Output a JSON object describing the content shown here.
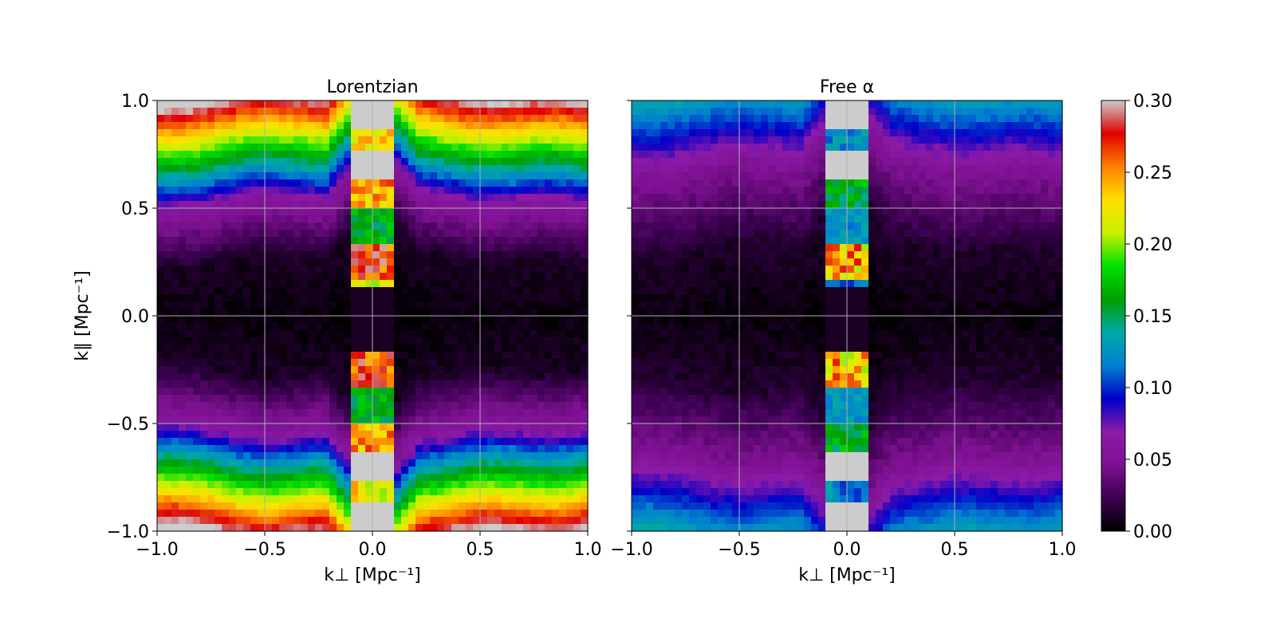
{
  "chart_data": {
    "type": "heatmap",
    "panels": [
      {
        "title": "Lorentzian",
        "model": "lorentzian",
        "xlim": [
          -1.0,
          1.0
        ],
        "ylim": [
          -1.0,
          1.0
        ],
        "x_ticks": [
          "−1.0",
          "−0.5",
          "0.0",
          "0.5",
          "1.0"
        ],
        "y_ticks": [
          "−1.0",
          "−0.5",
          "0.0",
          "0.5",
          "1.0"
        ],
        "grid": true
      },
      {
        "title": "Free α",
        "model": "free_alpha",
        "xlim": [
          -1.0,
          1.0
        ],
        "ylim": [
          -1.0,
          1.0
        ],
        "x_ticks": [
          "−1.0",
          "−0.5",
          "0.0",
          "0.5",
          "1.0"
        ],
        "y_ticks": [],
        "grid": true
      }
    ],
    "xlabel": "k⊥ [Mpc⁻¹]",
    "ylabel": "k∥ [Mpc⁻¹]",
    "grid_resolution": 60,
    "colorbar": {
      "vmin": 0.0,
      "vmax": 0.3,
      "ticks": [
        "0.00",
        "0.05",
        "0.10",
        "0.15",
        "0.20",
        "0.25",
        "0.30"
      ],
      "colormap": [
        "#000000",
        "#3b0050",
        "#7d1191",
        "#8c1aa8",
        "#0000c8",
        "#0080d0",
        "#00a8a8",
        "#00a000",
        "#00e000",
        "#c8f000",
        "#ffe000",
        "#ff8000",
        "#e00000",
        "#cccccc"
      ]
    },
    "values_description_values": {
      "center_zero_band_value": 0.0,
      "lorentzian_edge_value": 0.29,
      "free_alpha_edge_value": 0.12,
      "central_column_max_value": 0.3
    }
  }
}
